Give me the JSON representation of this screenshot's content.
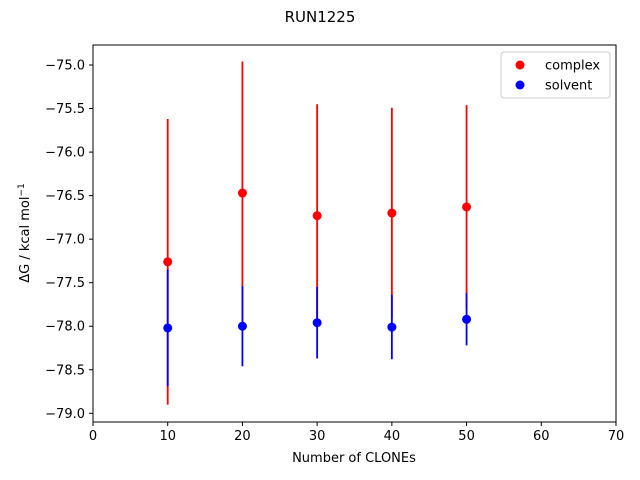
{
  "chart_data": {
    "type": "scatter",
    "title": "RUN1225",
    "xlabel": "Number of CLONEs",
    "ylabel_main": "ΔG / kcal mol",
    "ylabel_sup": "−1",
    "xlim": [
      0,
      70
    ],
    "ylim": [
      -79.1,
      -74.77
    ],
    "x_ticks": [
      0,
      10,
      20,
      30,
      40,
      50,
      60,
      70
    ],
    "x_tick_labels": [
      "0",
      "10",
      "20",
      "30",
      "40",
      "50",
      "60",
      "70"
    ],
    "y_ticks": [
      -79.0,
      -78.5,
      -78.0,
      -77.5,
      -77.0,
      -76.5,
      -76.0,
      -75.5,
      -75.0
    ],
    "y_tick_labels": [
      "−79.0",
      "−78.5",
      "−78.0",
      "−77.5",
      "−77.0",
      "−76.5",
      "−76.0",
      "−75.5",
      "−75.0"
    ],
    "grid": false,
    "legend_position": "top-right",
    "series": [
      {
        "name": "complex",
        "color": "#ff0000",
        "x": [
          10,
          20,
          30,
          40,
          50
        ],
        "y": [
          -77.26,
          -76.47,
          -76.73,
          -76.7,
          -76.63
        ],
        "err": [
          1.64,
          1.51,
          1.28,
          1.21,
          1.17
        ]
      },
      {
        "name": "solvent",
        "color": "#0000ff",
        "x": [
          10,
          20,
          30,
          40,
          50
        ],
        "y": [
          -78.02,
          -78.0,
          -77.96,
          -78.01,
          -77.92
        ],
        "err": [
          0.67,
          0.46,
          0.41,
          0.37,
          0.3
        ]
      }
    ]
  }
}
